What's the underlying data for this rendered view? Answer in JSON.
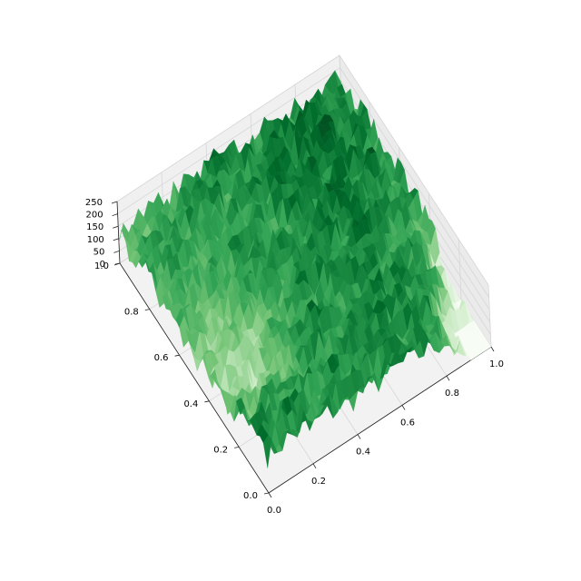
{
  "chart_data": {
    "type": "surface3d",
    "title": "",
    "xlabel": "",
    "ylabel": "",
    "zlabel": "",
    "xlim": [
      0.0,
      1.0
    ],
    "ylim": [
      0.0,
      1.0
    ],
    "zlim": [
      0,
      250
    ],
    "x_ticks": [
      "0.0",
      "0.2",
      "0.4",
      "0.6",
      "0.8",
      "1.0"
    ],
    "y_ticks": [
      "0.0",
      "0.2",
      "0.4",
      "0.6",
      "0.8",
      "1.0"
    ],
    "z_ticks": [
      "0",
      "50",
      "100",
      "150",
      "200",
      "250"
    ],
    "colormap": "Greens",
    "colormap_stops": [
      "#f7fcf5",
      "#c7e9c0",
      "#74c476",
      "#31a354",
      "#006d2c",
      "#00441b"
    ],
    "grid": true,
    "view": "elevated oblique, rotated ~55° (x axis to lower-right, y axis to upper-left)",
    "x": [
      0.0,
      0.1,
      0.2,
      0.3,
      0.4,
      0.5,
      0.6,
      0.7,
      0.8,
      0.9,
      1.0
    ],
    "y": [
      0.0,
      0.1,
      0.2,
      0.3,
      0.4,
      0.5,
      0.6,
      0.7,
      0.8,
      0.9,
      1.0
    ],
    "z": [
      [
        150,
        160,
        155,
        150,
        145,
        150,
        155,
        150,
        140,
        0,
        0
      ],
      [
        150,
        155,
        150,
        145,
        150,
        160,
        150,
        155,
        150,
        0,
        0
      ],
      [
        130,
        120,
        130,
        145,
        155,
        150,
        160,
        155,
        140,
        120,
        0
      ],
      [
        90,
        60,
        80,
        120,
        150,
        155,
        150,
        160,
        150,
        140,
        0
      ],
      [
        80,
        50,
        70,
        110,
        145,
        150,
        155,
        160,
        160,
        150,
        130
      ],
      [
        100,
        70,
        90,
        120,
        140,
        150,
        155,
        160,
        165,
        155,
        150
      ],
      [
        110,
        100,
        110,
        130,
        145,
        150,
        160,
        165,
        170,
        160,
        150
      ],
      [
        120,
        120,
        125,
        140,
        150,
        150,
        160,
        170,
        175,
        165,
        140
      ],
      [
        130,
        130,
        135,
        140,
        150,
        155,
        165,
        175,
        180,
        170,
        150
      ],
      [
        120,
        125,
        140,
        145,
        150,
        155,
        160,
        170,
        175,
        165,
        150
      ],
      [
        100,
        110,
        130,
        140,
        150,
        150,
        155,
        160,
        165,
        160,
        140
      ]
    ]
  }
}
